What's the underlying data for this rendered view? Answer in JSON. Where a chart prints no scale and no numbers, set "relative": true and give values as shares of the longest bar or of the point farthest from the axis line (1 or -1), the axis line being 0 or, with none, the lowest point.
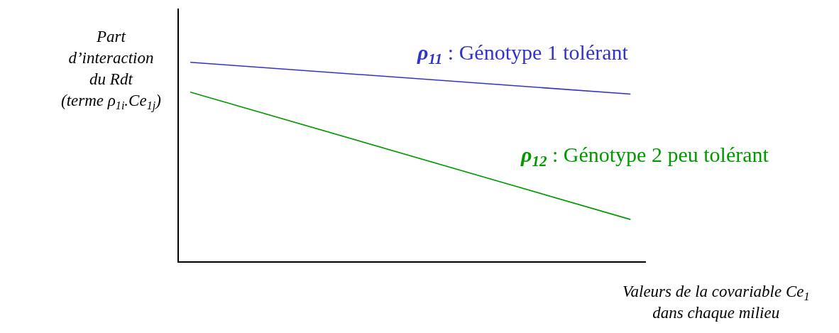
{
  "chart_data": {
    "type": "line",
    "relative": true,
    "categories": [
      null,
      null
    ],
    "ylabel": "Part\nd’interaction\ndu Rdt\n(terme ρ$_{1i}$.Ce$_{1j}$)",
    "xlabel": "Valeurs de la covariable Ce$_{1}$\ndans chaque milieu",
    "series": [
      {
        "name": "ρ$_{11}$ : Génotype 1 tolérant",
        "color": "#3333cc",
        "values": [
          1,
          0.84
        ]
      },
      {
        "name": "ρ$_{12}$ : Génotype 2 peu tolérant",
        "color": "#009900",
        "values": [
          0.85,
          0.21
        ]
      }
    ],
    "legend": false,
    "grid": false,
    "marker": "none",
    "line_style": "solid"
  }
}
